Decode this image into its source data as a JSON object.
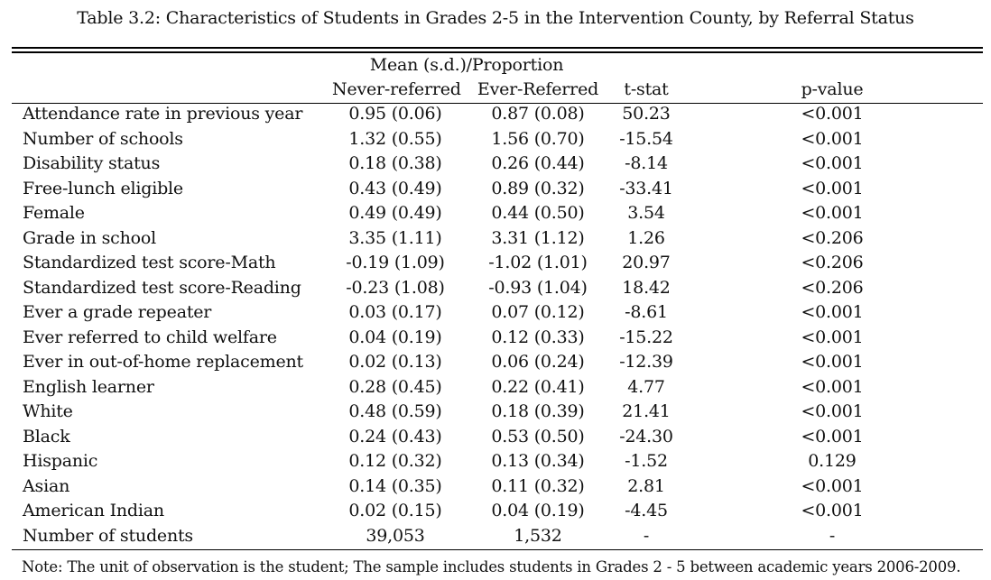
{
  "caption": "Table 3.2: Characteristics of Students in Grades 2-5 in the Intervention County, by Referral Status",
  "header": {
    "group": "Mean (s.d.)/Proportion",
    "never_referred": "Never-referred",
    "ever_referred": "Ever-Referred",
    "t_stat": "t-stat",
    "p_value": "p-value"
  },
  "rows": [
    {
      "label": "Attendance rate in previous year",
      "never": "0.95 (0.06)",
      "ever": "0.87 (0.08)",
      "t": "50.23",
      "p": "<0.001"
    },
    {
      "label": "Number of schools",
      "never": "1.32 (0.55)",
      "ever": "1.56 (0.70)",
      "t": "-15.54",
      "p": "<0.001"
    },
    {
      "label": "Disability status",
      "never": "0.18 (0.38)",
      "ever": "0.26 (0.44)",
      "t": "-8.14",
      "p": "<0.001"
    },
    {
      "label": "Free-lunch eligible",
      "never": "0.43 (0.49)",
      "ever": "0.89 (0.32)",
      "t": "-33.41",
      "p": "<0.001"
    },
    {
      "label": "Female",
      "never": "0.49 (0.49)",
      "ever": "0.44 (0.50)",
      "t": "3.54",
      "p": "<0.001"
    },
    {
      "label": "Grade in school",
      "never": "3.35 (1.11)",
      "ever": "3.31 (1.12)",
      "t": "1.26",
      "p": "<0.206"
    },
    {
      "label": "Standardized test score-Math",
      "never": "-0.19 (1.09)",
      "ever": "-1.02 (1.01)",
      "t": "20.97",
      "p": "<0.206"
    },
    {
      "label": "Standardized test score-Reading",
      "never": "-0.23 (1.08)",
      "ever": "-0.93 (1.04)",
      "t": "18.42",
      "p": "<0.206"
    },
    {
      "label": "Ever a grade repeater",
      "never": "0.03 (0.17)",
      "ever": "0.07 (0.12)",
      "t": "-8.61",
      "p": "<0.001"
    },
    {
      "label": "Ever referred to child welfare",
      "never": "0.04 (0.19)",
      "ever": "0.12 (0.33)",
      "t": "-15.22",
      "p": "<0.001"
    },
    {
      "label": "Ever in out-of-home replacement",
      "never": "0.02 (0.13)",
      "ever": "0.06 (0.24)",
      "t": "-12.39",
      "p": "<0.001"
    },
    {
      "label": "English learner",
      "never": "0.28 (0.45)",
      "ever": "0.22 (0.41)",
      "t": "4.77",
      "p": "<0.001"
    },
    {
      "label": "White",
      "never": "0.48 (0.59)",
      "ever": "0.18 (0.39)",
      "t": "21.41",
      "p": "<0.001"
    },
    {
      "label": "Black",
      "never": "0.24 (0.43)",
      "ever": "0.53 (0.50)",
      "t": "-24.30",
      "p": "<0.001"
    },
    {
      "label": "Hispanic",
      "never": "0.12 (0.32)",
      "ever": "0.13 (0.34)",
      "t": "-1.52",
      "p": "0.129"
    },
    {
      "label": "Asian",
      "never": "0.14 (0.35)",
      "ever": "0.11 (0.32)",
      "t": "2.81",
      "p": "<0.001"
    },
    {
      "label": "American Indian",
      "never": "0.02 (0.15)",
      "ever": "0.04 (0.19)",
      "t": "-4.45",
      "p": "<0.001"
    },
    {
      "label": "Number of students",
      "never": "39,053",
      "ever": "1,532",
      "t": "-",
      "p": "-"
    }
  ],
  "note": "Note: The unit of observation is the student; The sample includes students in Grades 2 - 5 between academic years 2006-2009."
}
